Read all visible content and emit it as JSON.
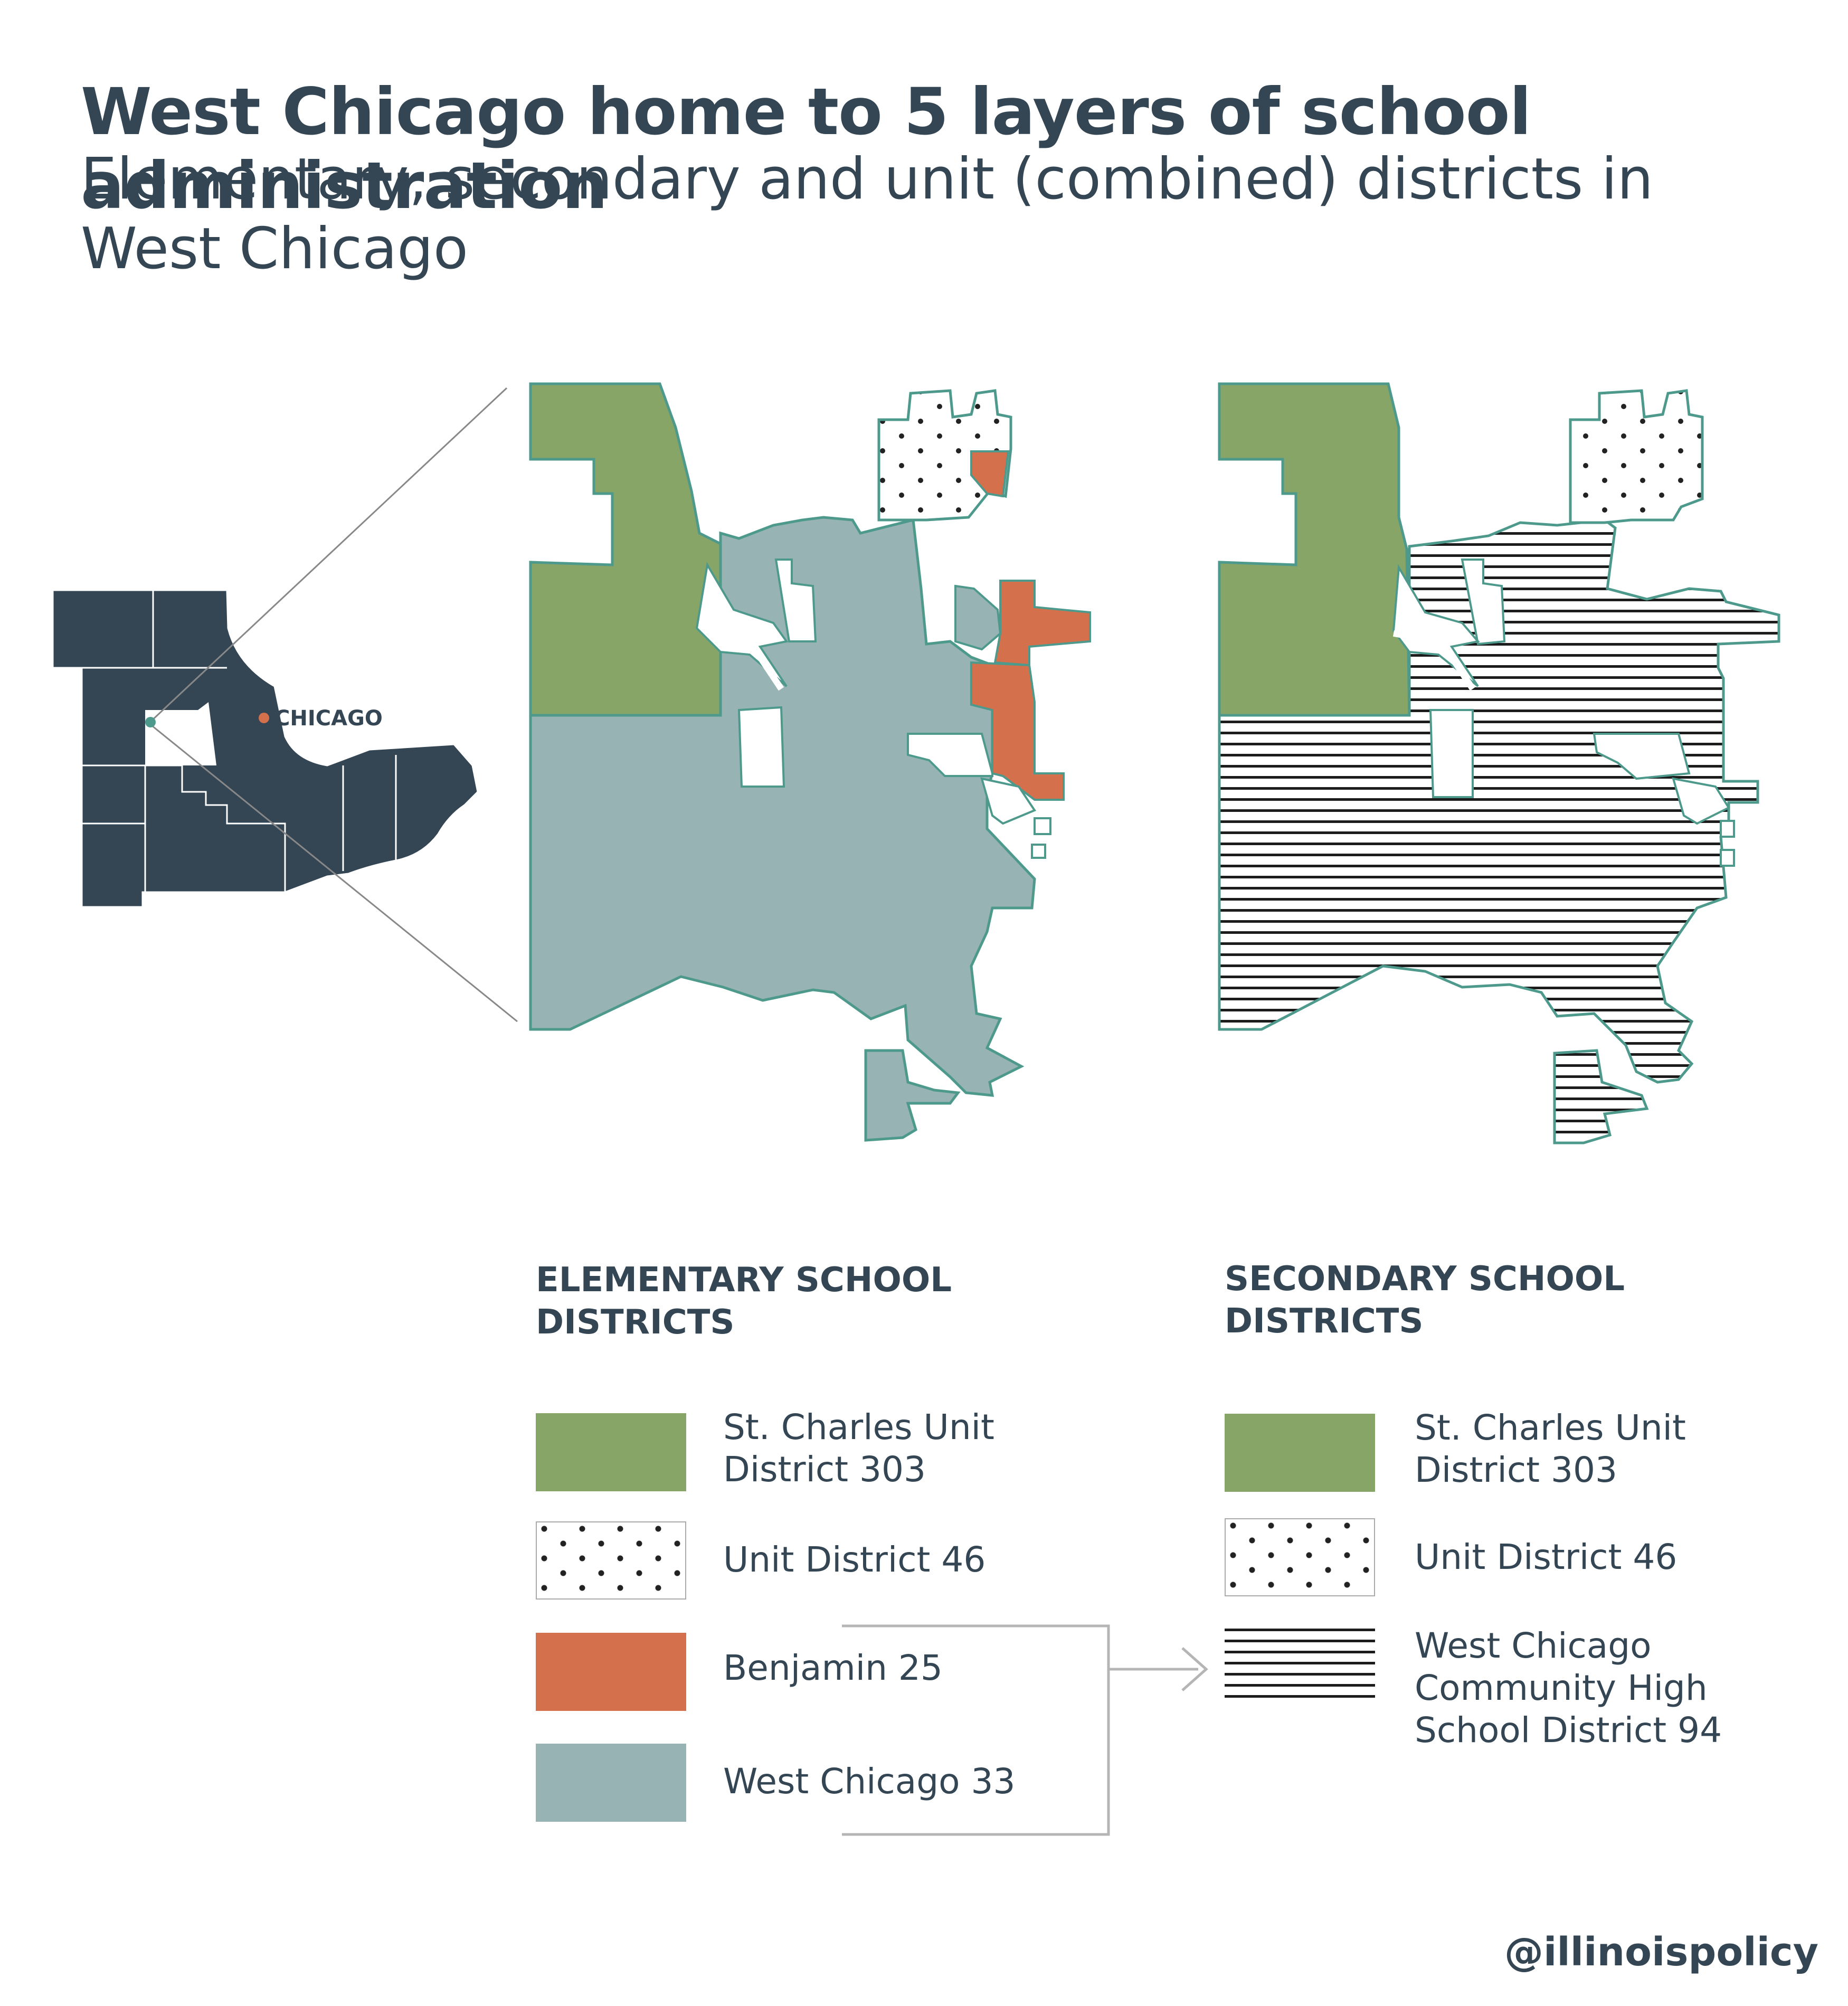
{
  "title": "West Chicago home to 5 layers of school administration",
  "subtitle": "Elementary, secondary and unit (combined) districts in West Chicago",
  "locator": {
    "city_label": "CHICAGO"
  },
  "legend_elementary": {
    "heading_line1": "ELEMENTARY SCHOOL",
    "heading_line2": "DISTRICTS",
    "items": [
      {
        "line1": "St. Charles Unit",
        "line2": "District 303",
        "color": "#86a567",
        "pattern": "solid"
      },
      {
        "line1": "Unit District 46",
        "line2": "",
        "color": "#ffffff",
        "pattern": "dots"
      },
      {
        "line1": "Benjamin 25",
        "line2": "",
        "color": "#d4704b",
        "pattern": "solid"
      },
      {
        "line1": "West Chicago 33",
        "line2": "",
        "color": "#98b3b3",
        "pattern": "solid"
      }
    ]
  },
  "legend_secondary": {
    "heading_line1": "SECONDARY SCHOOL",
    "heading_line2": "DISTRICTS",
    "items": [
      {
        "line1": "St. Charles Unit",
        "line2": "District 303",
        "color": "#86a567",
        "pattern": "solid"
      },
      {
        "line1": "Unit District 46",
        "line2": "",
        "color": "#ffffff",
        "pattern": "dots"
      },
      {
        "line1": "West Chicago",
        "line2": "Community High",
        "line3": "School District 94",
        "color": "#1c1c1c",
        "pattern": "horizontal-lines"
      }
    ]
  },
  "colors": {
    "text": "#344654",
    "locator_fill": "#344654",
    "outline": "#4d9a8c",
    "highlight_dot": "#d4704b"
  },
  "credit": "@illinoispolicy"
}
